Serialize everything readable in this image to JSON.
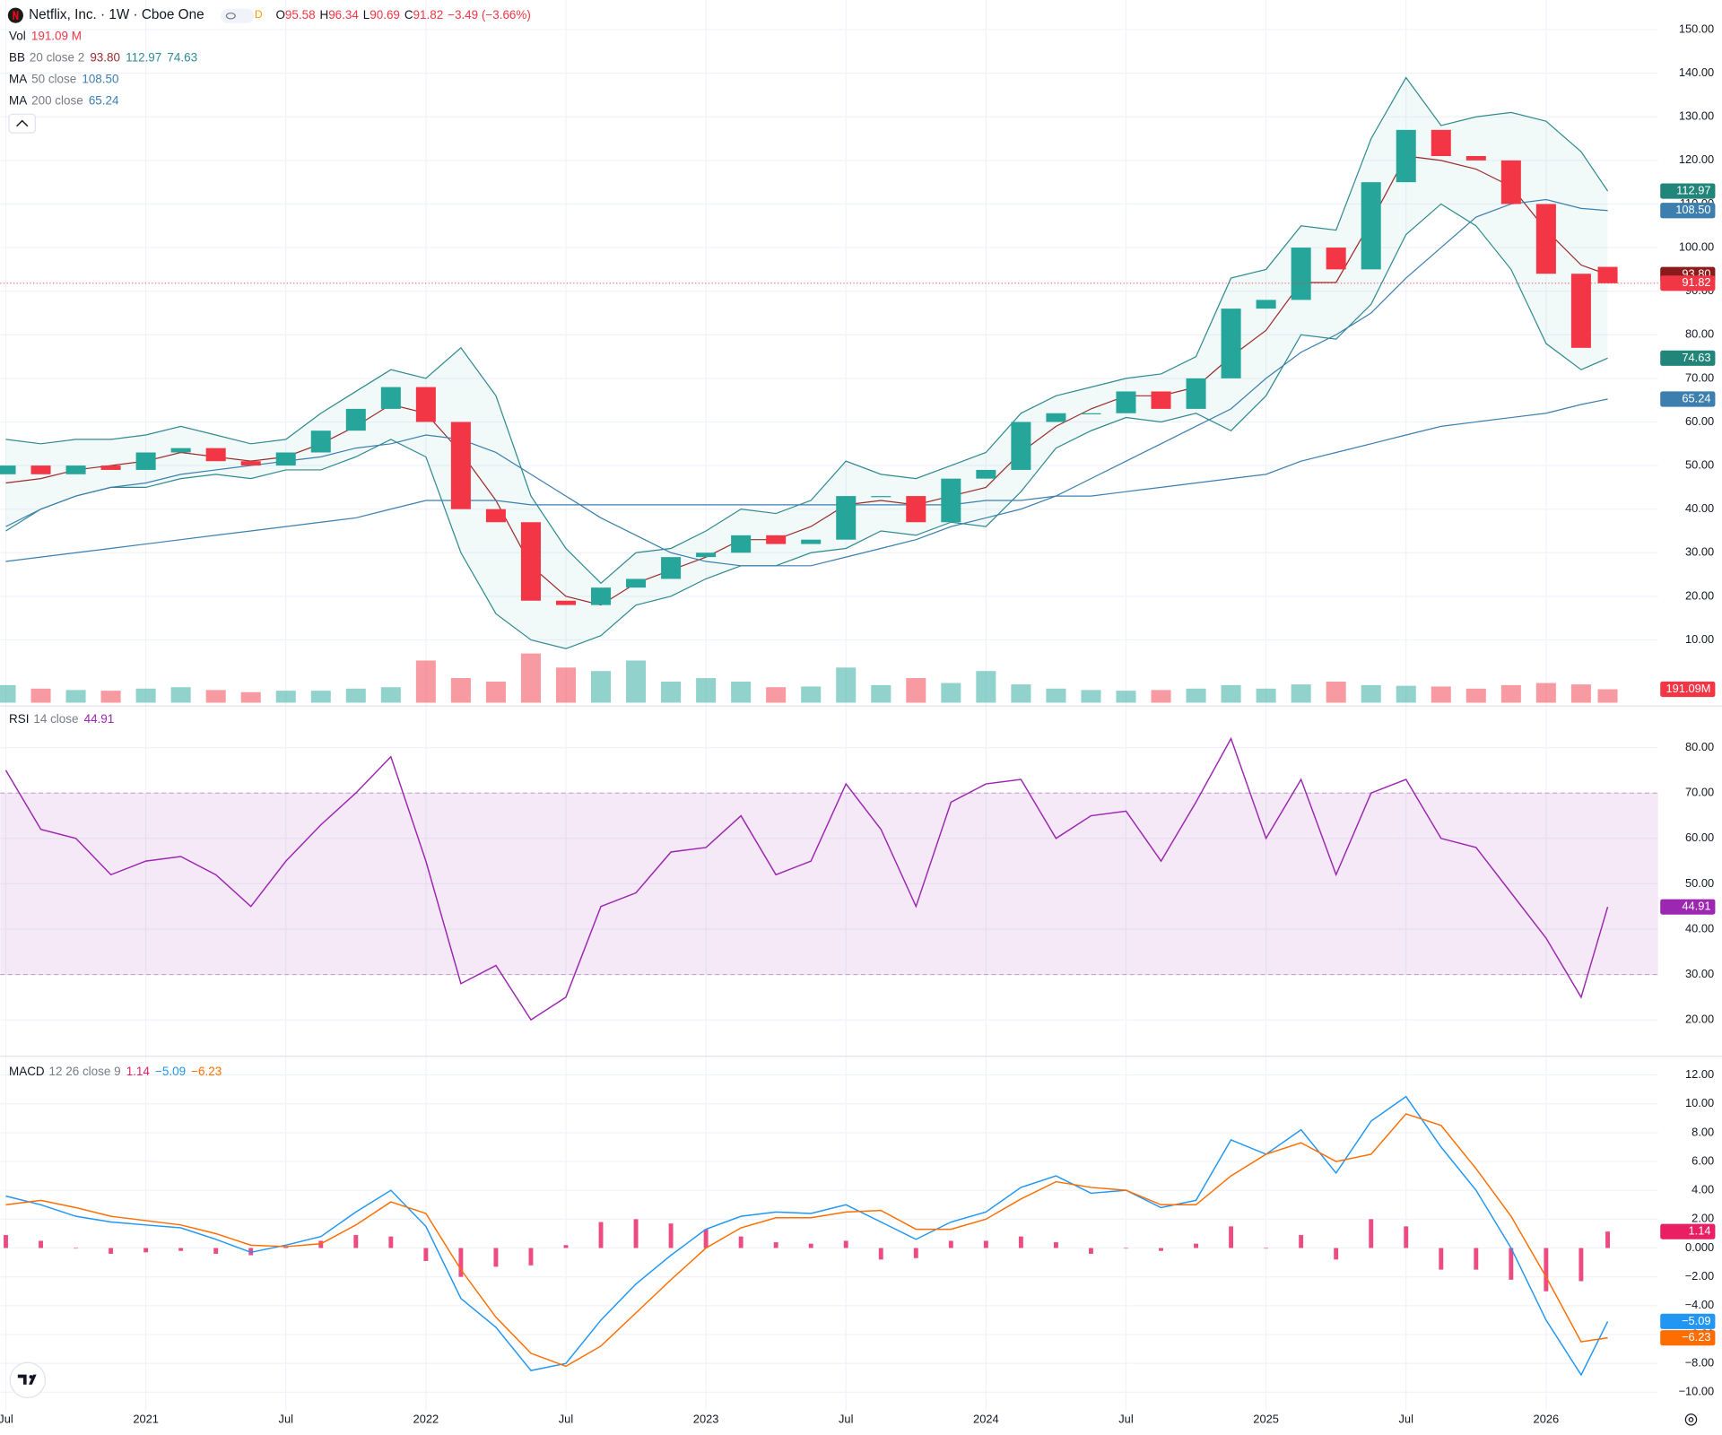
{
  "header": {
    "title": "Netflix, Inc. · 1W · Cboe One",
    "badge": "D",
    "ohlc": [
      {
        "key": "O",
        "value": "95.58"
      },
      {
        "key": "H",
        "value": "96.34"
      },
      {
        "key": "L",
        "value": "90.69"
      },
      {
        "key": "C",
        "value": "91.82"
      }
    ],
    "change": "−3.49 (−3.66%)"
  },
  "chart_data": [
    {
      "type": "candlestick",
      "x": [
        2020.5,
        2020.625,
        2020.75,
        2020.875,
        2021,
        2021.125,
        2021.25,
        2021.375,
        2021.5,
        2021.625,
        2021.75,
        2021.875,
        2022,
        2022.125,
        2022.25,
        2022.375,
        2022.5,
        2022.625,
        2022.75,
        2022.875,
        2023,
        2023.125,
        2023.25,
        2023.375,
        2023.5,
        2023.625,
        2023.75,
        2023.875,
        2024,
        2024.125,
        2024.25,
        2024.375,
        2024.5,
        2024.625,
        2024.75,
        2024.875,
        2025,
        2025.125,
        2025.25,
        2025.375,
        2025.5,
        2025.625,
        2025.75,
        2025.875,
        2026,
        2026.125,
        2026.22
      ],
      "open": [
        48,
        50,
        48,
        50,
        49,
        53,
        54,
        51,
        50,
        53,
        58,
        63,
        68,
        60,
        40,
        37,
        19,
        18,
        22,
        24,
        29,
        30,
        34,
        32,
        33,
        43,
        43,
        37,
        47,
        49,
        60,
        62,
        62,
        67,
        63,
        70,
        86,
        88,
        100,
        95,
        115,
        127,
        121,
        120,
        110,
        94,
        95.58
      ],
      "close": [
        50,
        48,
        50,
        49,
        53,
        54,
        51,
        50,
        53,
        58,
        63,
        68,
        60,
        40,
        37,
        19,
        18,
        22,
        24,
        29,
        30,
        34,
        32,
        33,
        43,
        43,
        37,
        47,
        49,
        60,
        62,
        62,
        67,
        63,
        70,
        86,
        88,
        100,
        95,
        115,
        127,
        121,
        120,
        110,
        94,
        77,
        91.82
      ],
      "up_color": "#26a69a",
      "down_color": "#f23645",
      "volume": [
        250,
        200,
        180,
        170,
        200,
        220,
        180,
        150,
        170,
        170,
        200,
        220,
        600,
        350,
        300,
        700,
        500,
        450,
        600,
        300,
        350,
        300,
        220,
        230,
        500,
        250,
        350,
        280,
        450,
        260,
        200,
        180,
        170,
        180,
        200,
        250,
        200,
        260,
        300,
        250,
        240,
        230,
        200,
        250,
        280,
        260,
        191.09
      ],
      "volume_ylim": [
        0,
        10000
      ],
      "volume_tag": "191.09M",
      "series": [
        {
          "name": "BB upper",
          "color": "#2f8a8f",
          "values": [
            56,
            55,
            56,
            56,
            57,
            59,
            57,
            55,
            56,
            62,
            67,
            72,
            70,
            77,
            66,
            43,
            31,
            23,
            30,
            31,
            35,
            40,
            39,
            42,
            51,
            48,
            47,
            50,
            53,
            62,
            66,
            68,
            70,
            71,
            75,
            93,
            95,
            105,
            104,
            125,
            139,
            128,
            130,
            131,
            129,
            122,
            112.97
          ]
        },
        {
          "name": "BB basis",
          "color": "#9b2c2c",
          "values": [
            46,
            47,
            49,
            50,
            51,
            53,
            52,
            51,
            52,
            55,
            59,
            64,
            62,
            53,
            42,
            27,
            20,
            18,
            23,
            26,
            29,
            33,
            33,
            36,
            41,
            42,
            41,
            43,
            45,
            53,
            59,
            63,
            66,
            66,
            68,
            75,
            81,
            92,
            92,
            106,
            121,
            120,
            118,
            114,
            104,
            96,
            93.8
          ]
        },
        {
          "name": "BB lower",
          "color": "#2f8a8f",
          "values": [
            35,
            40,
            43,
            45,
            45,
            47,
            48,
            47,
            49,
            49,
            52,
            56,
            52,
            30,
            16,
            10,
            8,
            11,
            18,
            20,
            24,
            27,
            27,
            30,
            31,
            35,
            34,
            37,
            36,
            44,
            54,
            58,
            61,
            60,
            62,
            58,
            66,
            80,
            79,
            87,
            103,
            110,
            105,
            95,
            78,
            72,
            74.63
          ]
        },
        {
          "name": "MA 50",
          "color": "#3c7fae",
          "values": [
            36,
            40,
            43,
            45,
            46,
            48,
            49,
            50,
            51,
            52,
            54,
            55,
            57,
            56,
            53,
            48,
            43,
            38,
            34,
            30,
            28,
            27,
            27,
            27,
            29,
            31,
            33,
            36,
            38,
            40,
            43,
            47,
            51,
            55,
            59,
            63,
            70,
            76,
            80,
            85,
            93,
            100,
            107,
            110,
            111,
            109,
            108.5
          ]
        },
        {
          "name": "MA 200",
          "color": "#3c7fae",
          "values": [
            28,
            29,
            30,
            31,
            32,
            33,
            34,
            35,
            36,
            37,
            38,
            40,
            42,
            42,
            42,
            41,
            41,
            41,
            41,
            41,
            41,
            41,
            41,
            41,
            41,
            41,
            41,
            41,
            42,
            42,
            43,
            43,
            44,
            45,
            46,
            47,
            48,
            51,
            53,
            55,
            57,
            59,
            60,
            61,
            62,
            64,
            65.24
          ]
        }
      ],
      "legends": [
        {
          "name": "Vol",
          "values": [
            "191.09 M"
          ],
          "colors": [
            "#f23645"
          ]
        },
        {
          "name": "BB",
          "params": "20 close 2",
          "values": [
            "93.80",
            "112.97",
            "74.63"
          ],
          "colors": [
            "#9b2c2c",
            "#2f8a8f",
            "#2f8a8f"
          ]
        },
        {
          "name": "MA",
          "params": "50 close",
          "values": [
            "108.50"
          ],
          "colors": [
            "#3c7fae"
          ]
        },
        {
          "name": "MA",
          "params": "200 close",
          "values": [
            "65.24"
          ],
          "colors": [
            "#3c7fae"
          ]
        }
      ],
      "ylim": [
        -4.4,
        156.8
      ],
      "yticks": [
        {
          "value": 10,
          "label": "10.00"
        },
        {
          "value": 20,
          "label": "20.00"
        },
        {
          "value": 30,
          "label": "30.00"
        },
        {
          "value": 40,
          "label": "40.00"
        },
        {
          "value": 50,
          "label": "50.00"
        },
        {
          "value": 60,
          "label": "60.00"
        },
        {
          "value": 70,
          "label": "70.00"
        },
        {
          "value": 80,
          "label": "80.00"
        },
        {
          "value": 90,
          "label": "90.00"
        },
        {
          "value": 100,
          "label": "100.00"
        },
        {
          "value": 110,
          "label": "110.00"
        },
        {
          "value": 120,
          "label": "120.00"
        },
        {
          "value": 130,
          "label": "130.00"
        },
        {
          "value": 140,
          "label": "140.00"
        },
        {
          "value": 150,
          "label": "150.00"
        }
      ],
      "xlim": [
        2020.48,
        2026.4
      ],
      "xticks": [
        {
          "value": 2020.5,
          "label": "Jul"
        },
        2021,
        {
          "value": 2021.5,
          "label": "Jul"
        },
        2022,
        {
          "value": 2022.5,
          "label": "Jul"
        },
        2023,
        {
          "value": 2023.5,
          "label": "Jul"
        },
        2024,
        {
          "value": 2024.5,
          "label": "Jul"
        },
        2025,
        {
          "value": 2025.5,
          "label": "Jul"
        },
        2026
      ],
      "grid": true
    },
    {
      "type": "line",
      "series": [
        {
          "name": "RSI",
          "color": "#9c27b0",
          "values": [
            75,
            62,
            60,
            52,
            55,
            56,
            52,
            45,
            55,
            63,
            70,
            78,
            55,
            28,
            32,
            20,
            25,
            45,
            48,
            57,
            58,
            65,
            52,
            55,
            72,
            62,
            45,
            68,
            72,
            73,
            60,
            65,
            66,
            55,
            68,
            82,
            60,
            73,
            52,
            70,
            73,
            60,
            58,
            48,
            38,
            25,
            44.91
          ]
        }
      ],
      "bands": [
        30,
        70
      ],
      "legends": [
        {
          "name": "RSI",
          "params": "14 close",
          "values": [
            "44.91"
          ],
          "colors": [
            "#9c27b0"
          ]
        }
      ],
      "ylim": [
        12.0,
        88.7
      ],
      "yticks": [
        {
          "value": 20,
          "label": "20.00"
        },
        {
          "value": 30,
          "label": "30.00"
        },
        {
          "value": 40,
          "label": "40.00"
        },
        {
          "value": 50,
          "label": "50.00"
        },
        {
          "value": 60,
          "label": "60.00"
        },
        {
          "value": 70,
          "label": "70.00"
        },
        {
          "value": 80,
          "label": "80.00"
        }
      ],
      "grid": true
    },
    {
      "type": "macd",
      "series": [
        {
          "name": "Histogram",
          "color": "#e91e63",
          "values": [
            0.9,
            0.5,
            0,
            -0.4,
            -0.3,
            -0.2,
            -0.4,
            -0.5,
            0.1,
            0.5,
            0.9,
            0.8,
            -0.9,
            -2.0,
            -1.3,
            -1.2,
            0.2,
            1.8,
            2.0,
            1.7,
            1.3,
            0.8,
            0.4,
            0.3,
            0.5,
            -0.8,
            -0.7,
            0.5,
            0.5,
            0.8,
            0.4,
            -0.4,
            0,
            -0.2,
            0.3,
            1.5,
            0,
            0.9,
            -0.8,
            2.0,
            1.5,
            -1.5,
            -1.5,
            -2.2,
            -3.0,
            -2.3,
            1.14
          ]
        },
        {
          "name": "MACD",
          "color": "#2196f3",
          "values": [
            3.6,
            3.0,
            2.2,
            1.8,
            1.6,
            1.4,
            0.6,
            -0.3,
            0.2,
            0.8,
            2.5,
            4.0,
            1.5,
            -3.5,
            -5.5,
            -8.5,
            -8.0,
            -5,
            -2.5,
            -0.5,
            1.3,
            2.2,
            2.5,
            2.4,
            3.0,
            1.8,
            0.6,
            1.8,
            2.5,
            4.2,
            5.0,
            3.8,
            4.0,
            2.8,
            3.3,
            7.5,
            6.5,
            8.2,
            5.2,
            8.8,
            10.5,
            7.0,
            4.0,
            0.0,
            -5.0,
            -8.8,
            -5.09
          ]
        },
        {
          "name": "Signal",
          "color": "#ff6d00",
          "values": [
            3.0,
            3.3,
            2.8,
            2.2,
            1.9,
            1.6,
            1.0,
            0.2,
            0.1,
            0.3,
            1.6,
            3.2,
            2.4,
            -1.5,
            -4.8,
            -7.3,
            -8.2,
            -6.8,
            -4.5,
            -2.2,
            0,
            1.4,
            2.1,
            2.1,
            2.5,
            2.6,
            1.3,
            1.3,
            2.0,
            3.4,
            4.6,
            4.2,
            4.0,
            3.0,
            3.0,
            5.0,
            6.5,
            7.3,
            6.0,
            6.5,
            9.3,
            8.5,
            5.5,
            2.2,
            -2.0,
            -6.5,
            -6.23
          ]
        }
      ],
      "legends": [
        {
          "name": "MACD",
          "params": "12 26 close 9",
          "values": [
            "1.14",
            "−5.09",
            "−6.23"
          ],
          "colors": [
            "#e91e63",
            "#2196f3",
            "#ff6d00"
          ]
        }
      ],
      "ylim": [
        -11.29,
        13.07
      ],
      "yticks": [
        {
          "value": -10,
          "label": "−10.00"
        },
        {
          "value": -8,
          "label": "−8.00"
        },
        {
          "value": -6,
          "label": "−6.00"
        },
        {
          "value": -4,
          "label": "−4.00"
        },
        {
          "value": -2,
          "label": "−2.00"
        },
        {
          "value": 0,
          "label": "0.000"
        },
        {
          "value": 2,
          "label": "2.00"
        },
        {
          "value": 4,
          "label": "4.00"
        },
        {
          "value": 6,
          "label": "6.00"
        },
        {
          "value": 8,
          "label": "8.00"
        },
        {
          "value": 10,
          "label": "10.00"
        },
        {
          "value": 12,
          "label": "12.00"
        }
      ],
      "grid": true
    }
  ]
}
